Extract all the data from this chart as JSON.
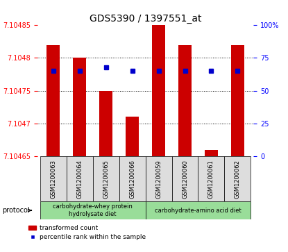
{
  "title": "GDS5390 / 1397551_at",
  "samples": [
    "GSM1200063",
    "GSM1200064",
    "GSM1200065",
    "GSM1200066",
    "GSM1200059",
    "GSM1200060",
    "GSM1200061",
    "GSM1200062"
  ],
  "bar_values": [
    7.10482,
    7.1048,
    7.10475,
    7.10471,
    7.10485,
    7.10482,
    7.10466,
    7.10482
  ],
  "percentile_values": [
    7.10479,
    7.10479,
    7.10479,
    7.10479,
    7.10479,
    7.10479,
    7.10479,
    7.10479
  ],
  "percentile_ranks": [
    65,
    65,
    68,
    65,
    65,
    65,
    65,
    65
  ],
  "y_min": 7.10465,
  "y_max": 7.10485,
  "y_ticks": [
    7.10465,
    7.1047,
    7.10475,
    7.1048,
    7.10485
  ],
  "y_tick_labels": [
    "7.10465",
    "7.1047",
    "7.10475",
    "7.1048",
    "7.10485"
  ],
  "right_y_ticks": [
    0,
    25,
    50,
    75,
    100
  ],
  "bar_color": "#cc0000",
  "percentile_color": "#0000cc",
  "group1_label": "carbohydrate-whey protein\nhydrolysate diet",
  "group2_label": "carbohydrate-amino acid diet",
  "group1_indices": [
    0,
    1,
    2,
    3
  ],
  "group2_indices": [
    4,
    5,
    6,
    7
  ],
  "group_bg_color": "#99dd99",
  "sample_bg_color": "#dddddd",
  "legend_bar_label": "transformed count",
  "legend_dot_label": "percentile rank within the sample",
  "protocol_label": "protocol"
}
